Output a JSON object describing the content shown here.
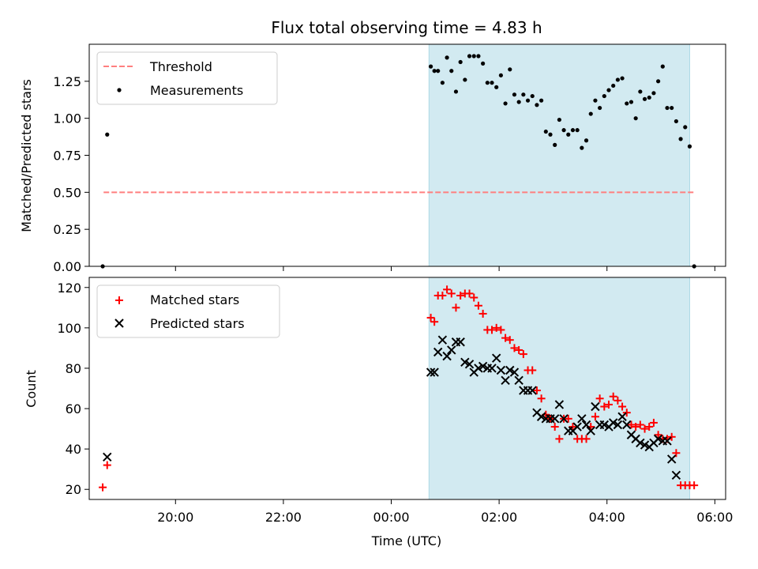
{
  "chart_data": {
    "title": "Flux total observing time = 4.83 h",
    "xlabel": "Time (UTC)",
    "x_ticks": [
      "20:00",
      "22:00",
      "00:00",
      "02:00",
      "04:00",
      "06:00"
    ],
    "x_range": [
      "18:24",
      "06:12"
    ],
    "shaded_interval": [
      "00:42",
      "05:32"
    ],
    "shade_color": "#add8e6",
    "grid": false,
    "panels": [
      {
        "type": "scatter",
        "ylabel": "Matched/Predicted stars",
        "ylim": [
          0,
          1.5
        ],
        "y_ticks": [
          "0.00",
          "0.25",
          "0.50",
          "0.75",
          "1.00",
          "1.25"
        ],
        "legend_position": "upper-left",
        "series": [
          {
            "name": "Threshold",
            "style": "dashed-line",
            "color": "#ff7f7f",
            "x": [
              "18:40",
              "05:37"
            ],
            "y": [
              0.5,
              0.5
            ]
          },
          {
            "name": "Measurements",
            "style": "dot",
            "color": "#000000",
            "x": [
              "18:39",
              "18:44",
              "00:44",
              "00:48",
              "00:52",
              "00:57",
              "01:02",
              "01:07",
              "01:12",
              "01:17",
              "01:22",
              "01:27",
              "01:32",
              "01:37",
              "01:42",
              "01:47",
              "01:52",
              "01:57",
              "02:02",
              "02:07",
              "02:12",
              "02:17",
              "02:22",
              "02:27",
              "02:32",
              "02:37",
              "02:42",
              "02:47",
              "02:52",
              "02:57",
              "03:02",
              "03:07",
              "03:12",
              "03:17",
              "03:22",
              "03:27",
              "03:32",
              "03:37",
              "03:42",
              "03:47",
              "03:52",
              "03:57",
              "04:02",
              "04:07",
              "04:12",
              "04:17",
              "04:22",
              "04:27",
              "04:32",
              "04:37",
              "04:42",
              "04:47",
              "04:52",
              "04:57",
              "05:02",
              "05:07",
              "05:12",
              "05:17",
              "05:22",
              "05:27",
              "05:32",
              "05:37"
            ],
            "y": [
              0.0,
              0.89,
              1.35,
              1.32,
              1.32,
              1.24,
              1.41,
              1.32,
              1.18,
              1.38,
              1.26,
              1.42,
              1.42,
              1.42,
              1.37,
              1.24,
              1.24,
              1.21,
              1.29,
              1.1,
              1.33,
              1.16,
              1.11,
              1.16,
              1.12,
              1.15,
              1.09,
              1.12,
              0.91,
              0.89,
              0.82,
              0.99,
              0.92,
              0.89,
              0.92,
              0.92,
              0.8,
              0.85,
              1.03,
              1.12,
              1.07,
              1.15,
              1.19,
              1.22,
              1.26,
              1.27,
              1.1,
              1.11,
              1.0,
              1.18,
              1.13,
              1.14,
              1.17,
              1.25,
              1.35,
              1.07,
              1.07,
              0.98,
              0.86,
              0.94,
              0.81,
              0.0
            ]
          }
        ]
      },
      {
        "type": "scatter",
        "ylabel": "Count",
        "ylim": [
          15,
          125
        ],
        "y_ticks": [
          "20",
          "40",
          "60",
          "80",
          "100",
          "120"
        ],
        "legend_position": "upper-left",
        "series": [
          {
            "name": "Matched stars",
            "marker": "plus",
            "color": "#ff0000",
            "x": [
              "18:39",
              "18:44",
              "00:44",
              "00:48",
              "00:52",
              "00:57",
              "01:02",
              "01:07",
              "01:12",
              "01:17",
              "01:22",
              "01:27",
              "01:32",
              "01:37",
              "01:42",
              "01:47",
              "01:52",
              "01:57",
              "02:02",
              "02:07",
              "02:12",
              "02:17",
              "02:22",
              "02:27",
              "02:32",
              "02:37",
              "02:42",
              "02:47",
              "02:52",
              "02:57",
              "03:02",
              "03:07",
              "03:12",
              "03:17",
              "03:22",
              "03:27",
              "03:32",
              "03:37",
              "03:42",
              "03:47",
              "03:52",
              "03:57",
              "04:02",
              "04:07",
              "04:12",
              "04:17",
              "04:22",
              "04:27",
              "04:32",
              "04:37",
              "04:42",
              "04:47",
              "04:52",
              "04:57",
              "05:02",
              "05:07",
              "05:12",
              "05:17",
              "05:22",
              "05:27",
              "05:32",
              "05:37"
            ],
            "y": [
              21,
              32,
              105,
              103,
              116,
              116,
              119,
              117,
              110,
              116,
              117,
              117,
              115,
              111,
              107,
              99,
              99,
              100,
              99,
              95,
              94,
              90,
              89,
              87,
              79,
              79,
              69,
              65,
              57,
              55,
              51,
              45,
              55,
              55,
              51,
              45,
              45,
              45,
              51,
              56,
              65,
              61,
              62,
              66,
              64,
              61,
              58,
              52,
              51,
              52,
              50,
              51,
              53,
              47,
              45,
              45,
              46,
              38,
              22,
              22,
              22,
              22
            ]
          },
          {
            "name": "Predicted stars",
            "marker": "x",
            "color": "#000000",
            "x": [
              "18:39",
              "18:44",
              "00:44",
              "00:48",
              "00:52",
              "00:57",
              "01:02",
              "01:07",
              "01:12",
              "01:17",
              "01:22",
              "01:27",
              "01:32",
              "01:37",
              "01:42",
              "01:47",
              "01:52",
              "01:57",
              "02:02",
              "02:07",
              "02:12",
              "02:17",
              "02:22",
              "02:27",
              "02:32",
              "02:37",
              "02:42",
              "02:47",
              "02:52",
              "02:57",
              "03:02",
              "03:07",
              "03:12",
              "03:17",
              "03:22",
              "03:27",
              "03:32",
              "03:37",
              "03:42",
              "03:47",
              "03:52",
              "03:57",
              "04:02",
              "04:07",
              "04:12",
              "04:17",
              "04:22",
              "04:27",
              "04:32",
              "04:37",
              "04:42",
              "04:47",
              "04:52",
              "04:57",
              "05:02",
              "05:07",
              "05:12",
              "05:17",
              "05:22",
              "05:27",
              "05:32",
              "05:37"
            ],
            "y": [
              null,
              36,
              78,
              78,
              88,
              94,
              86,
              89,
              93,
              93,
              83,
              82,
              78,
              80,
              81,
              80,
              80,
              85,
              79,
              74,
              79,
              78,
              74,
              69,
              69,
              69,
              58,
              56,
              55,
              55,
              55,
              62,
              55,
              49,
              49,
              51,
              55,
              52,
              49,
              61,
              52,
              52,
              51,
              53,
              52,
              56,
              52,
              47,
              45,
              43,
              42,
              41,
              43,
              45,
              44,
              44,
              35,
              27,
              null,
              null,
              null,
              null
            ]
          }
        ]
      }
    ]
  }
}
